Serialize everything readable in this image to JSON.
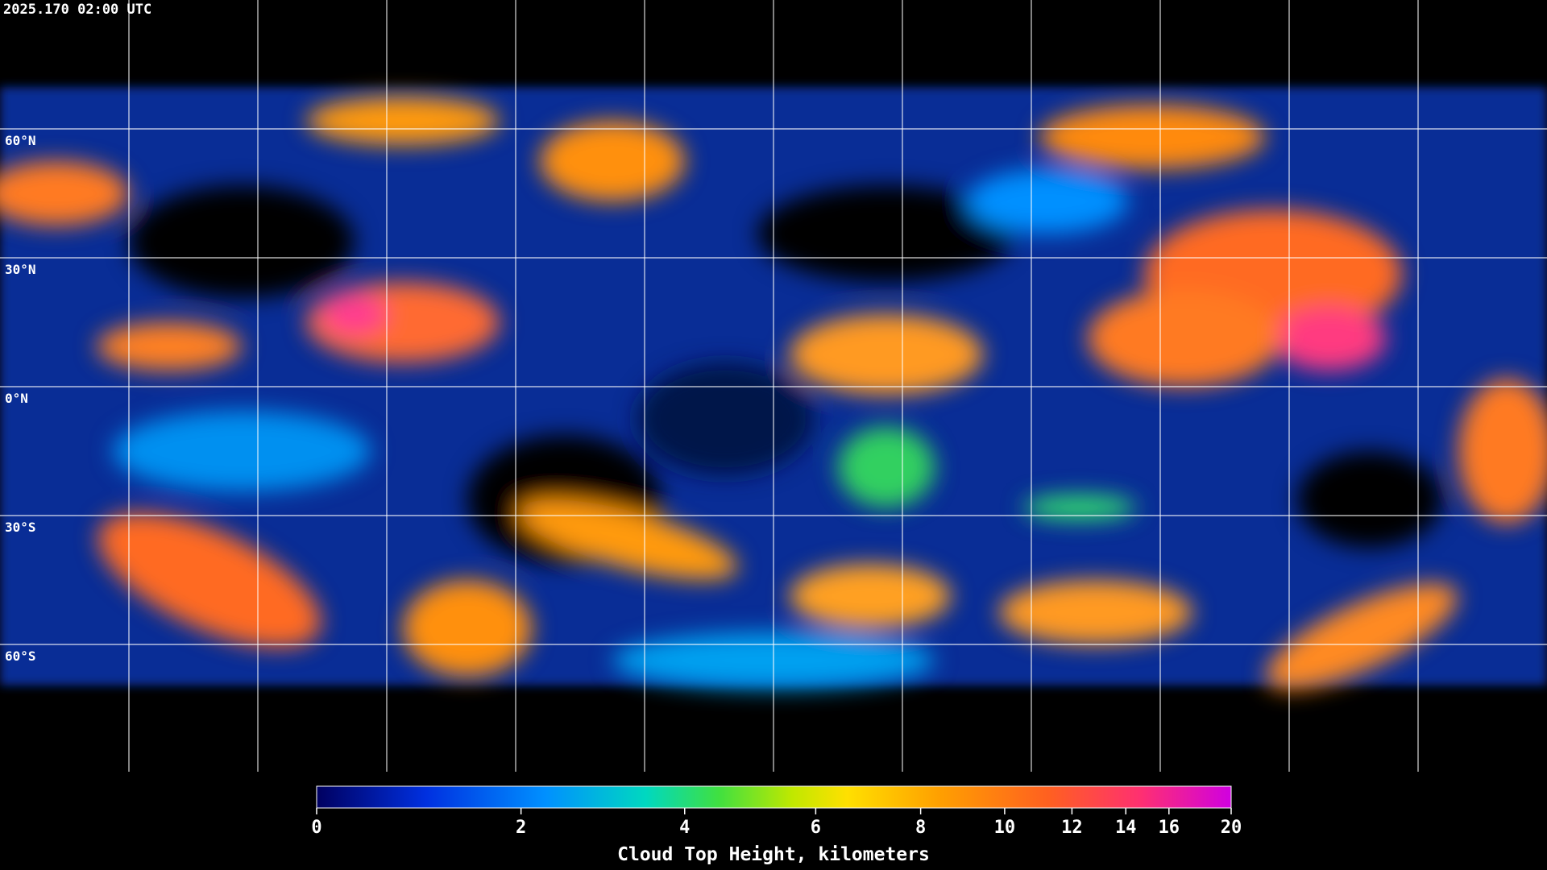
{
  "header": {
    "timestamp": "2025.170 02:00 UTC"
  },
  "map": {
    "latitude_labels": [
      "60°N",
      "30°N",
      "0°N",
      "30°S",
      "60°S"
    ]
  },
  "colorbar": {
    "title": "Cloud Top Height, kilometers",
    "range": [
      0,
      20
    ],
    "ticks": [
      0,
      2,
      4,
      6,
      8,
      10,
      12,
      14,
      16,
      20
    ]
  }
}
